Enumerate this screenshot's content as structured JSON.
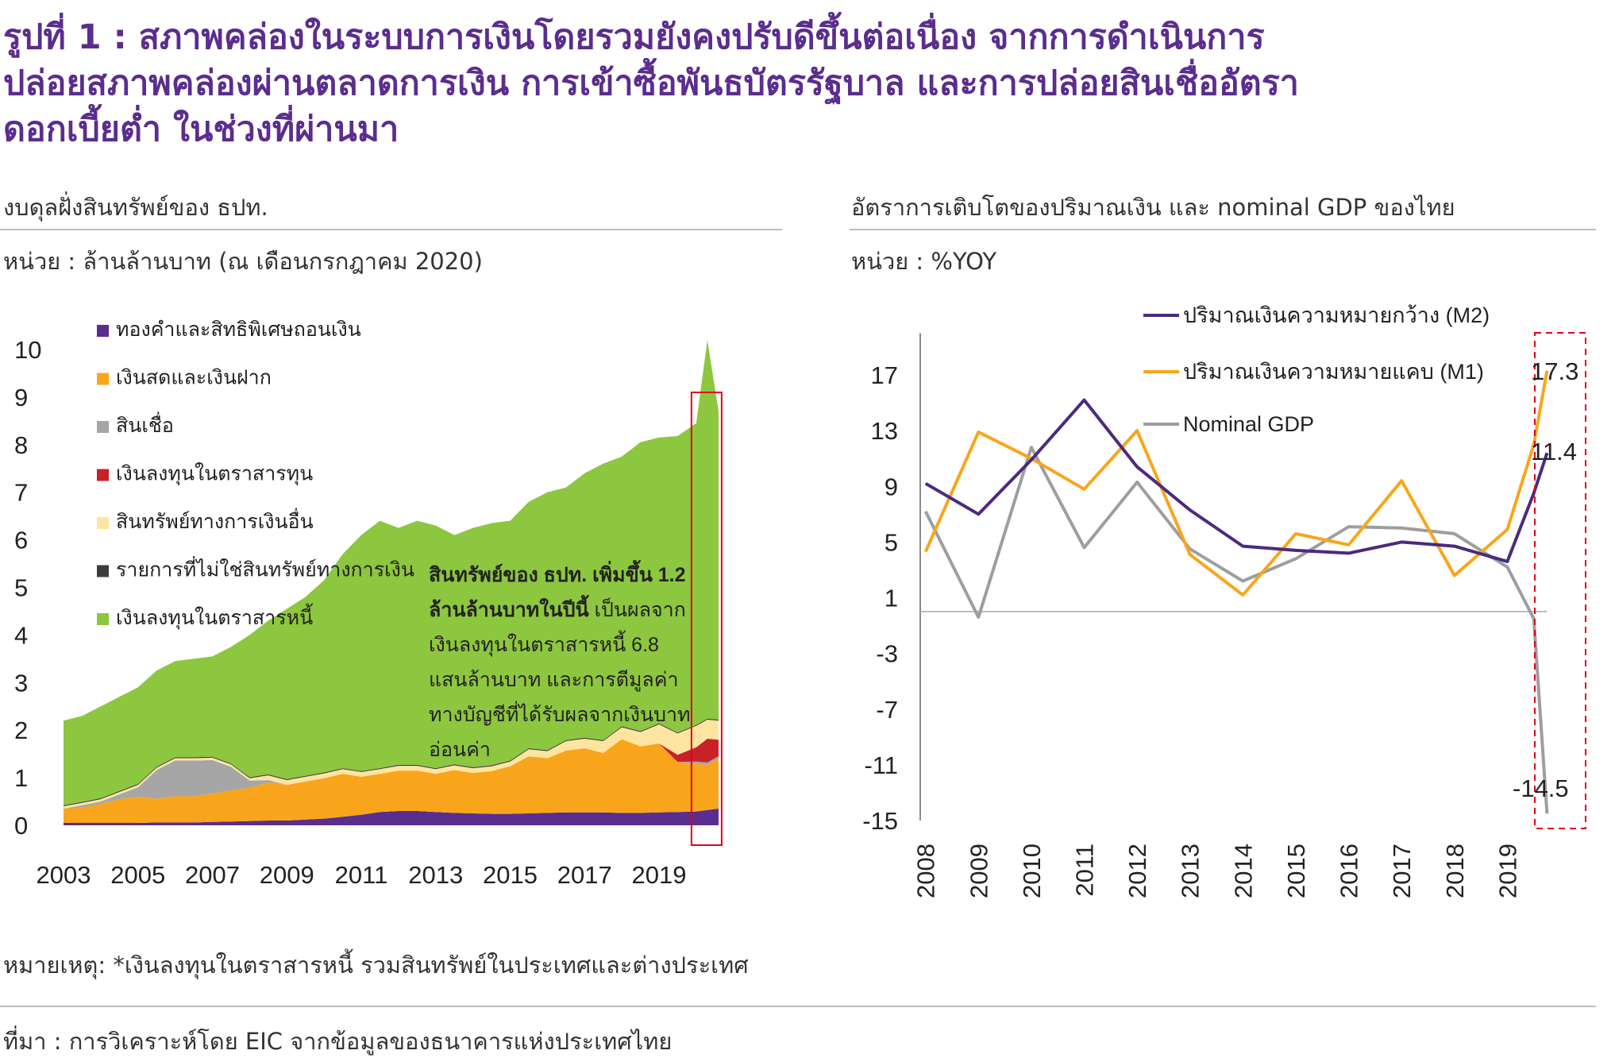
{
  "title": {
    "line1": "รูปที่ 1 : สภาพคล่องในระบบการเงินโดยรวมยังคงปรับดีขึ้นต่อเนื่อง จากการดำเนินการ",
    "line2": "ปล่อยสภาพคล่องผ่านตลาดการเงิน การเข้าซื้อพันธบัตรรัฐบาล และการปล่อยสินเชื่ออัตรา",
    "line3": "ดอกเบี้ยต่ำ ในช่วงที่ผ่านมา"
  },
  "left_caption": "งบดุลฝั่งสินทรัพย์ของ ธปท.",
  "left_unit": "หน่วย : ล้านล้านบาท (ณ เดือนกรกฎาคม 2020)",
  "right_caption": "อัตราการเติบโตของปริมาณเงิน และ nominal GDP ของไทย",
  "right_unit": "หน่วย : %YOY",
  "footnote": "หมายเหตุ: *เงินลงทุนในตราสารหนี้ รวมสินทรัพย์ในประเทศและต่างประเทศ",
  "source": "ที่มา : การวิเคราะห์โดย EIC จากข้อมูลของธนาคารแห่งประเทศไทย",
  "colors": {
    "gold": "#5b2d8e",
    "cash": "#f9a51b",
    "loans": "#a6a6a6",
    "equity": "#c9202a",
    "other_fin": "#fde5a0",
    "non_fin": "#3d3d3d",
    "debt": "#8dc63f",
    "m2": "#4b2a7f",
    "m1": "#f9a51b",
    "gdp": "#9e9e9e",
    "highlight": "#e3001b"
  },
  "chart_data": [
    {
      "type": "area",
      "stacked": true,
      "x_ticks": [
        "2003",
        "2005",
        "2007",
        "2009",
        "2011",
        "2013",
        "2015",
        "2017",
        "2019"
      ],
      "x_range": [
        2003,
        2020.6
      ],
      "ylim": [
        0,
        10
      ],
      "y_ticks": [
        "0",
        "1",
        "2",
        "3",
        "4",
        "5",
        "6",
        "7",
        "8",
        "9",
        "10"
      ],
      "legend_position": "top-left",
      "x": [
        2003.0,
        2003.5,
        2004.0,
        2004.5,
        2005.0,
        2005.5,
        2006.0,
        2006.5,
        2007.0,
        2007.5,
        2008.0,
        2008.5,
        2009.0,
        2009.5,
        2010.0,
        2010.5,
        2011.0,
        2011.5,
        2012.0,
        2012.5,
        2013.0,
        2013.5,
        2014.0,
        2014.5,
        2015.0,
        2015.5,
        2016.0,
        2016.5,
        2017.0,
        2017.5,
        2018.0,
        2018.5,
        2019.0,
        2019.5,
        2020.0,
        2020.3,
        2020.6
      ],
      "series": [
        {
          "name": "ทองคำและสิทธิพิเศษถอนเงิน",
          "values": [
            0.05,
            0.05,
            0.05,
            0.05,
            0.05,
            0.06,
            0.06,
            0.06,
            0.07,
            0.08,
            0.09,
            0.1,
            0.1,
            0.12,
            0.14,
            0.18,
            0.22,
            0.28,
            0.3,
            0.3,
            0.28,
            0.26,
            0.25,
            0.24,
            0.24,
            0.25,
            0.26,
            0.27,
            0.27,
            0.27,
            0.26,
            0.26,
            0.27,
            0.28,
            0.29,
            0.32,
            0.35
          ]
        },
        {
          "name": "เงินสดและเงินฝาก",
          "values": [
            0.3,
            0.32,
            0.4,
            0.5,
            0.55,
            0.5,
            0.55,
            0.55,
            0.6,
            0.65,
            0.7,
            0.8,
            0.75,
            0.8,
            0.85,
            0.9,
            0.8,
            0.8,
            0.85,
            0.85,
            0.8,
            0.9,
            0.85,
            0.9,
            1.0,
            1.2,
            1.15,
            1.3,
            1.35,
            1.25,
            1.55,
            1.4,
            1.45,
            1.05,
            1.0,
            0.95,
            1.05
          ]
        },
        {
          "name": "สินเชื่อ",
          "values": [
            0.0,
            0.05,
            0.05,
            0.1,
            0.2,
            0.6,
            0.75,
            0.75,
            0.7,
            0.5,
            0.15,
            0.05,
            0.0,
            0.0,
            0.0,
            0.0,
            0.0,
            0.0,
            0.0,
            0.0,
            0.0,
            0.0,
            0.0,
            0.0,
            0.0,
            0.0,
            0.0,
            0.0,
            0.0,
            0.0,
            0.0,
            0.0,
            0.0,
            0.0,
            0.05,
            0.05,
            0.05
          ]
        },
        {
          "name": "เงินลงทุนในตราสารทุน",
          "values": [
            0.0,
            0.0,
            0.0,
            0.0,
            0.0,
            0.0,
            0.0,
            0.0,
            0.0,
            0.0,
            0.0,
            0.0,
            0.0,
            0.0,
            0.0,
            0.0,
            0.0,
            0.0,
            0.0,
            0.0,
            0.0,
            0.0,
            0.0,
            0.0,
            0.0,
            0.0,
            0.0,
            0.0,
            0.0,
            0.0,
            0.0,
            0.0,
            0.0,
            0.15,
            0.3,
            0.5,
            0.35
          ]
        },
        {
          "name": "สินทรัพย์ทางการเงินอื่น",
          "values": [
            0.05,
            0.05,
            0.05,
            0.05,
            0.05,
            0.05,
            0.05,
            0.05,
            0.05,
            0.05,
            0.05,
            0.1,
            0.1,
            0.1,
            0.1,
            0.1,
            0.1,
            0.1,
            0.1,
            0.1,
            0.1,
            0.1,
            0.1,
            0.1,
            0.1,
            0.15,
            0.15,
            0.2,
            0.2,
            0.25,
            0.25,
            0.3,
            0.4,
            0.45,
            0.45,
            0.4,
            0.4
          ]
        },
        {
          "name": "รายการที่ไม่ใช่สินทรัพย์ทางการเงิน",
          "values": [
            0.02,
            0.02,
            0.02,
            0.02,
            0.02,
            0.02,
            0.02,
            0.02,
            0.02,
            0.02,
            0.02,
            0.02,
            0.02,
            0.02,
            0.02,
            0.02,
            0.02,
            0.02,
            0.02,
            0.02,
            0.02,
            0.02,
            0.02,
            0.02,
            0.02,
            0.02,
            0.02,
            0.02,
            0.02,
            0.02,
            0.02,
            0.02,
            0.02,
            0.02,
            0.02,
            0.02,
            0.02
          ]
        },
        {
          "name": "เงินลงทุนในตราสารหนี้",
          "values": [
            1.78,
            1.81,
            1.93,
            1.98,
            2.03,
            2.02,
            2.02,
            2.07,
            2.11,
            2.45,
            2.99,
            3.23,
            3.58,
            3.76,
            4.04,
            4.5,
            4.96,
            5.2,
            4.98,
            5.13,
            5.1,
            4.82,
            5.03,
            5.09,
            5.04,
            5.18,
            5.42,
            5.31,
            5.56,
            5.81,
            5.67,
            6.07,
            6.01,
            6.23,
            6.34,
            7.96,
            6.48
          ]
        }
      ],
      "annotation_bold": "สินทรัพย์ของ ธปท. เพิ่มขึ้น 1.2 ล้านล้านบาทในปีนี้",
      "annotation_lines": [
        "เป็นผลจาก",
        "เงินลงทุนในตราสารหนี้ 6.8",
        "แสนล้านบาท และการตีมูลค่า",
        "ทางบัญชีที่ได้รับผลจากเงินบาท",
        "อ่อนค่า"
      ]
    },
    {
      "type": "line",
      "x_ticks": [
        "2008",
        "2009",
        "2010",
        "2011",
        "2012",
        "2013",
        "2014",
        "2015",
        "2016",
        "2017",
        "2018",
        "2019"
      ],
      "x_range": [
        2007.9,
        2020.3
      ],
      "ylim": [
        -15,
        20
      ],
      "y_ticks": [
        "17",
        "13",
        "9",
        "5",
        "1",
        "-3",
        "-7",
        "-11",
        "-15"
      ],
      "legend_position": "top-center",
      "series": [
        {
          "name": "ปริมาณเงินความหมายกว้าง (M2)",
          "x": [
            2008,
            2009,
            2010,
            2011,
            2012,
            2013,
            2014,
            2015,
            2016,
            2017,
            2018,
            2019,
            2019.5,
            2019.75
          ],
          "values": [
            9.2,
            7.0,
            10.9,
            15.2,
            10.4,
            7.3,
            4.7,
            4.4,
            4.2,
            5.0,
            4.7,
            3.6,
            8.5,
            11.4
          ]
        },
        {
          "name": "ปริมาณเงินความหมายแคบ (M1)",
          "x": [
            2008,
            2009,
            2010,
            2011,
            2012,
            2013,
            2014,
            2015,
            2016,
            2017,
            2018,
            2019,
            2019.5,
            2019.75
          ],
          "values": [
            4.3,
            12.9,
            11.0,
            8.8,
            13.0,
            4.1,
            1.2,
            5.6,
            4.8,
            9.4,
            2.6,
            5.9,
            12.0,
            17.3
          ]
        },
        {
          "name": "Nominal GDP",
          "x": [
            2008,
            2009,
            2010,
            2011,
            2012,
            2013,
            2014,
            2015,
            2016,
            2017,
            2018,
            2019,
            2019.5,
            2019.75
          ],
          "values": [
            7.2,
            -0.4,
            11.8,
            4.6,
            9.3,
            4.5,
            2.2,
            3.8,
            6.1,
            6.0,
            5.6,
            3.2,
            -0.5,
            -14.5
          ]
        }
      ],
      "data_labels": [
        "17.3",
        "11.4",
        "-14.5"
      ]
    }
  ]
}
